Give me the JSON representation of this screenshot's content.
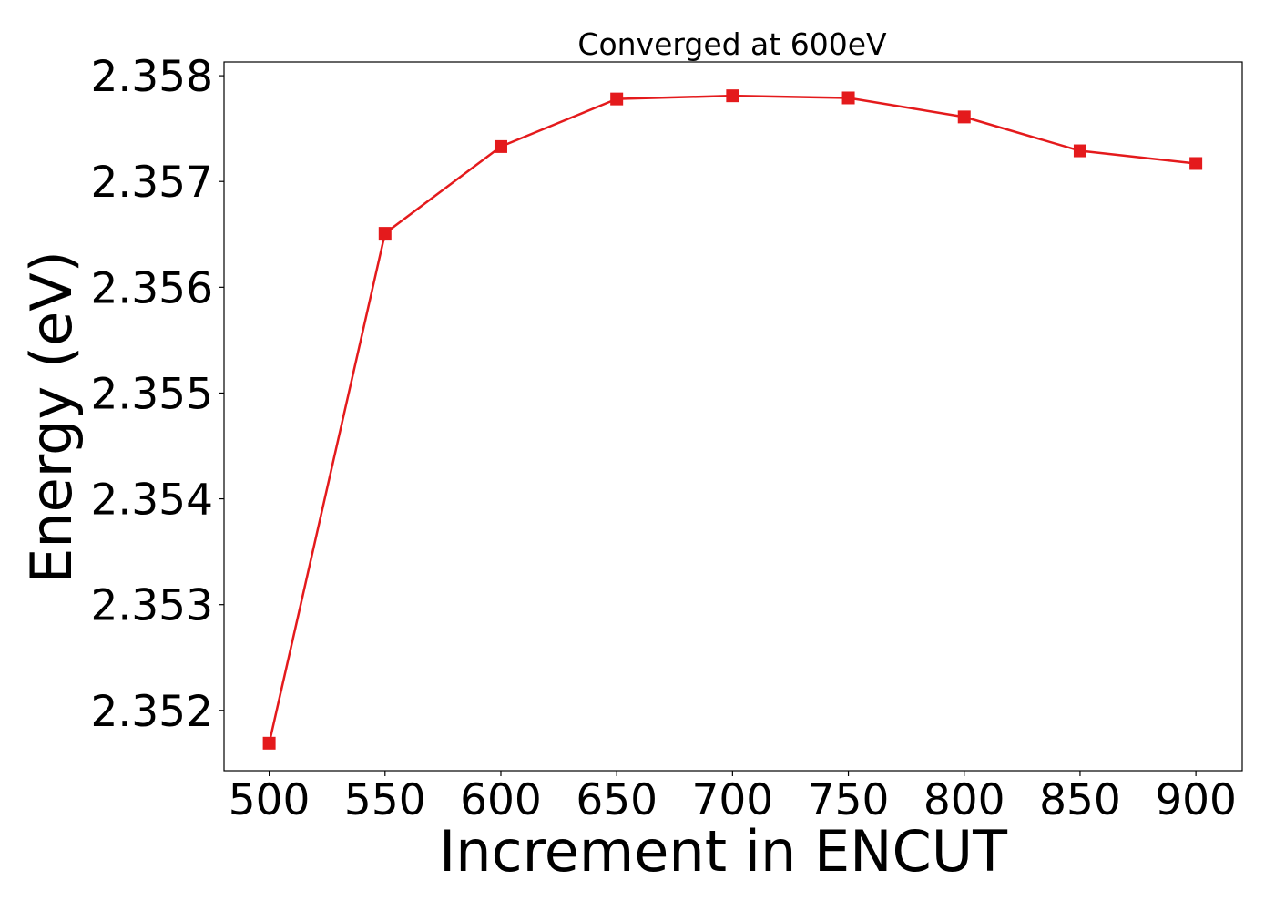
{
  "chart_data": {
    "type": "line",
    "title": "Converged at 600eV",
    "xlabel": "Increment in ENCUT",
    "ylabel": "Energy (eV)",
    "x": [
      500,
      550,
      600,
      650,
      700,
      750,
      800,
      850,
      900
    ],
    "series": [
      {
        "values": [
          2.35169,
          2.35651,
          2.35733,
          2.35778,
          2.35781,
          2.35779,
          2.35761,
          2.35729,
          2.35717
        ],
        "color": "#e41a1c",
        "marker": "square"
      }
    ],
    "xticks": [
      500,
      550,
      600,
      650,
      700,
      750,
      800,
      850,
      900
    ],
    "xtick_labels": [
      "500",
      "550",
      "600",
      "650",
      "700",
      "750",
      "800",
      "850",
      "900"
    ],
    "yticks": [
      2.352,
      2.353,
      2.354,
      2.355,
      2.356,
      2.357,
      2.358
    ],
    "ytick_labels": [
      "2.352",
      "2.353",
      "2.354",
      "2.355",
      "2.356",
      "2.357",
      "2.358"
    ],
    "xlim": [
      480.5,
      920
    ],
    "ylim": [
      2.35143,
      2.35813
    ],
    "grid": false,
    "legend": "none"
  }
}
